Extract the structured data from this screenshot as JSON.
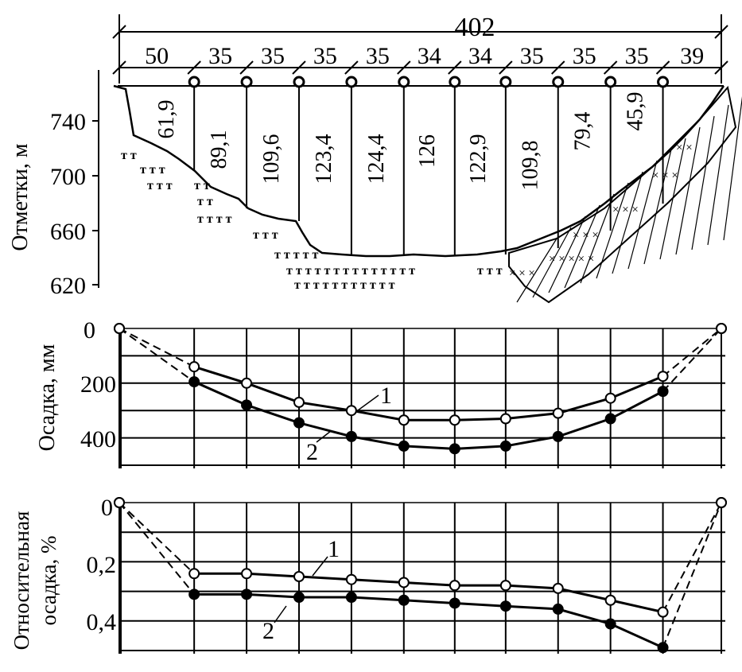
{
  "dimensions": {
    "total": "402",
    "spans": [
      "50",
      "35",
      "35",
      "35",
      "35",
      "34",
      "34",
      "35",
      "35",
      "35",
      "39"
    ]
  },
  "profile": {
    "ylabel": "Отметки, м",
    "yticks": [
      "740",
      "700",
      "660",
      "620"
    ],
    "heights": [
      "61,9",
      "89,1",
      "109,6",
      "123,4",
      "124,4",
      "126",
      "122,9",
      "109,8",
      "79,4",
      "45,9"
    ]
  },
  "chart_data": [
    {
      "type": "line",
      "ylabel": "Осадка, мм",
      "yticks": [
        "0",
        "200",
        "400"
      ],
      "ylim": [
        0,
        500
      ],
      "y_inverted": true,
      "grid": true,
      "series": [
        {
          "name": "1",
          "marker": "open-circle",
          "values": [
            0,
            140,
            200,
            270,
            300,
            335,
            335,
            330,
            310,
            255,
            175,
            0
          ]
        },
        {
          "name": "2",
          "marker": "filled-circle",
          "values": [
            0,
            195,
            280,
            345,
            395,
            430,
            440,
            430,
            395,
            330,
            230,
            0
          ]
        }
      ]
    },
    {
      "type": "line",
      "ylabel": "Относительная осадка, %",
      "yticks": [
        "0",
        "0,2",
        "0,4"
      ],
      "ylim": [
        0,
        0.5
      ],
      "y_inverted": true,
      "grid": true,
      "series": [
        {
          "name": "1",
          "marker": "open-circle",
          "values": [
            0,
            0.24,
            0.24,
            0.25,
            0.26,
            0.27,
            0.28,
            0.28,
            0.29,
            0.33,
            0.37,
            0
          ]
        },
        {
          "name": "2",
          "marker": "filled-circle",
          "values": [
            0,
            0.31,
            0.31,
            0.32,
            0.32,
            0.33,
            0.34,
            0.35,
            0.36,
            0.41,
            0.49,
            0
          ]
        }
      ]
    }
  ]
}
